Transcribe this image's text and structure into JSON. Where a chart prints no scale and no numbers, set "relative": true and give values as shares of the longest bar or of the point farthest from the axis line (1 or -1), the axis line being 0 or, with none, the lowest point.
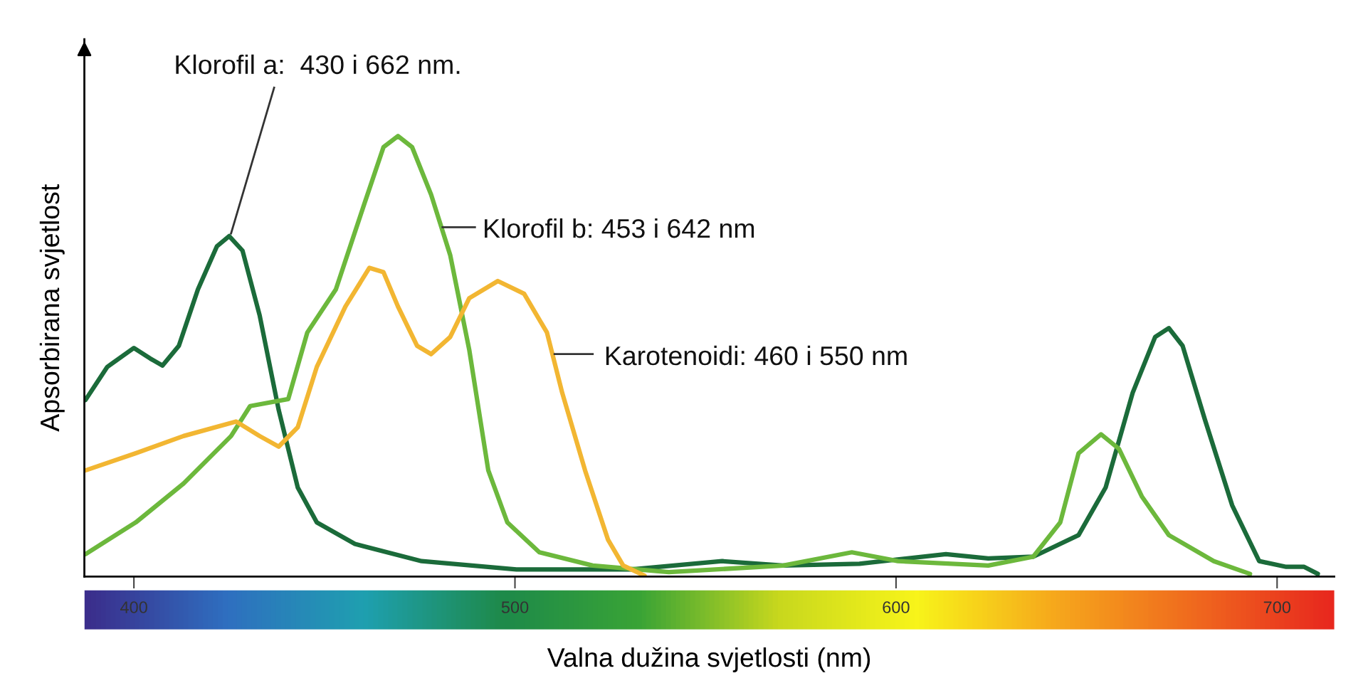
{
  "chart_data": {
    "type": "line",
    "relative": true,
    "xlabel": "Valna dužina svjetlosti (nm)",
    "ylabel": "Apsorbirana svjetlost",
    "xlim": [
      387,
      715
    ],
    "xticks": [
      400,
      500,
      600,
      700
    ],
    "grid": false,
    "legend": false,
    "marker": "none",
    "line_style": "solid",
    "series": [
      {
        "name": "Klorofil a:  430 i 662 nm.",
        "color": "#1b6b3a",
        "x": [
          387.3,
          393,
          400,
          404.3,
          407.5,
          411.8,
          416.8,
          421.8,
          425,
          428.5,
          433,
          438,
          443,
          448,
          458,
          475.5,
          500.4,
          530.4,
          554.4,
          570.4,
          590.4,
          613.1,
          624.2,
          636,
          647.9,
          655,
          662.1,
          668,
          671.6,
          675.2,
          681,
          688.2,
          695.3,
          702.4,
          707.1,
          710.7
        ],
        "values": [
          0.401,
          0.476,
          0.519,
          0.495,
          0.479,
          0.524,
          0.652,
          0.75,
          0.773,
          0.74,
          0.593,
          0.378,
          0.202,
          0.123,
          0.074,
          0.035,
          0.016,
          0.016,
          0.035,
          0.025,
          0.029,
          0.051,
          0.041,
          0.045,
          0.094,
          0.202,
          0.417,
          0.544,
          0.564,
          0.524,
          0.358,
          0.162,
          0.035,
          0.022,
          0.022,
          0.006
        ]
      },
      {
        "name": "Klorofil b: 453 i 642 nm",
        "color": "#6cb83c",
        "x": [
          387.3,
          400.5,
          413,
          425.5,
          430.5,
          440.5,
          445.5,
          453,
          460.5,
          465.5,
          469.3,
          473,
          478,
          483,
          488,
          493,
          498,
          506.4,
          520.4,
          540.4,
          570.4,
          588.4,
          600.5,
          624.2,
          636,
          643.1,
          647.9,
          653.8,
          658.5,
          664.5,
          671.6,
          683.4,
          692.9
        ],
        "values": [
          0.051,
          0.123,
          0.211,
          0.319,
          0.387,
          0.403,
          0.554,
          0.652,
          0.847,
          0.975,
          1,
          0.975,
          0.867,
          0.73,
          0.515,
          0.241,
          0.123,
          0.055,
          0.025,
          0.01,
          0.025,
          0.055,
          0.035,
          0.025,
          0.045,
          0.123,
          0.28,
          0.323,
          0.29,
          0.182,
          0.094,
          0.035,
          0.006
        ]
      },
      {
        "name": "Karotenoidi: 460 i 550 nm",
        "color": "#f2b632",
        "x": [
          387.3,
          400.5,
          413,
          426.8,
          433,
          438,
          443,
          448,
          455.5,
          461.8,
          465.5,
          469.3,
          474.3,
          478,
          483,
          488,
          495.5,
          502.4,
          508.4,
          512.4,
          518.4,
          524.4,
          528.4,
          534
        ],
        "values": [
          0.241,
          0.28,
          0.319,
          0.352,
          0.319,
          0.295,
          0.339,
          0.476,
          0.613,
          0.701,
          0.691,
          0.613,
          0.524,
          0.505,
          0.544,
          0.632,
          0.671,
          0.642,
          0.554,
          0.417,
          0.241,
          0.084,
          0.025,
          0.002
        ]
      }
    ]
  }
}
